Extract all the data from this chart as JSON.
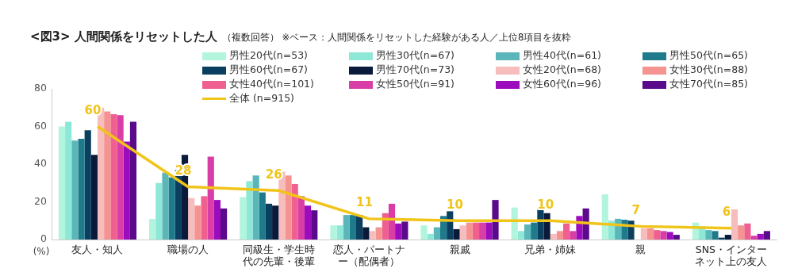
{
  "chart_data": {
    "type": "bar",
    "title": "<図3> 人間関係をリセットした人",
    "subtitle": "（複数回答） ※ベース：人間関係をリセットした経験がある人／上位8項目を抜粋",
    "ylabel": "(%)",
    "categories": [
      "友人・知人",
      "職場の人",
      "同級生・学生時代の先輩・後輩",
      "恋人・パートナー（配偶者）",
      "親戚",
      "兄弟・姉妹",
      "親",
      "SNS・インターネット上の友人"
    ],
    "ylim": [
      0,
      80
    ],
    "yticks": [
      0,
      20,
      40,
      60,
      80
    ],
    "legend": "top right",
    "marker": "none",
    "series": [
      {
        "name": "男性20代(n=53)",
        "color": "#b3f5dc",
        "values": [
          60,
          11,
          22.5,
          7.5,
          7.5,
          17,
          24,
          9
        ]
      },
      {
        "name": "男性30代(n=67)",
        "color": "#8ee8d8",
        "values": [
          62.5,
          30,
          31,
          7.5,
          3,
          4.5,
          10,
          7
        ]
      },
      {
        "name": "男性40代(n=61)",
        "color": "#5ab6b8",
        "values": [
          52.5,
          35.5,
          34,
          13,
          6.5,
          8,
          11,
          5
        ]
      },
      {
        "name": "男性50代(n=65)",
        "color": "#1f7a8c",
        "values": [
          53.5,
          33,
          25,
          13,
          12.5,
          9,
          10.5,
          4.5
        ]
      },
      {
        "name": "男性60代(n=67)",
        "color": "#0b3f5f",
        "values": [
          58,
          37,
          19,
          13,
          15,
          16.5,
          10,
          1
        ]
      },
      {
        "name": "男性70代(n=73)",
        "color": "#0a1a3a",
        "values": [
          45,
          45,
          18,
          6.5,
          5.5,
          14,
          0,
          2.5
        ]
      },
      {
        "name": "女性20代(n=68)",
        "color": "#f7bcbc",
        "values": [
          70,
          22,
          36,
          4.5,
          7.5,
          3,
          6,
          16
        ]
      },
      {
        "name": "女性30代(n=88)",
        "color": "#f59390",
        "values": [
          68,
          18,
          34,
          6.5,
          9,
          4.5,
          6,
          7.5
        ]
      },
      {
        "name": "女性40代(n=101)",
        "color": "#ef5f8f",
        "values": [
          66.5,
          23,
          29.5,
          14,
          9,
          8.5,
          5,
          8.5
        ]
      },
      {
        "name": "女性50代(n=91)",
        "color": "#d83ea6",
        "values": [
          66,
          44,
          23,
          19,
          9,
          4.5,
          4.5,
          2
        ]
      },
      {
        "name": "女性60代(n=96)",
        "color": "#9a0cbc",
        "values": [
          52,
          21,
          18,
          8.5,
          9,
          12.5,
          4,
          3
        ]
      },
      {
        "name": "女性70代(n=85)",
        "color": "#5a0a8a",
        "values": [
          62.5,
          16.5,
          15.5,
          9.5,
          21,
          16.5,
          2.5,
          4.5
        ]
      },
      {
        "name": "全体 (n=915)",
        "color": "#f0c419",
        "type": "line",
        "values": [
          60,
          28,
          26,
          11,
          10,
          10,
          7,
          6
        ],
        "value_labels": [
          "60",
          "28",
          "26",
          "11",
          "10",
          "10",
          "7",
          "6"
        ]
      }
    ]
  }
}
